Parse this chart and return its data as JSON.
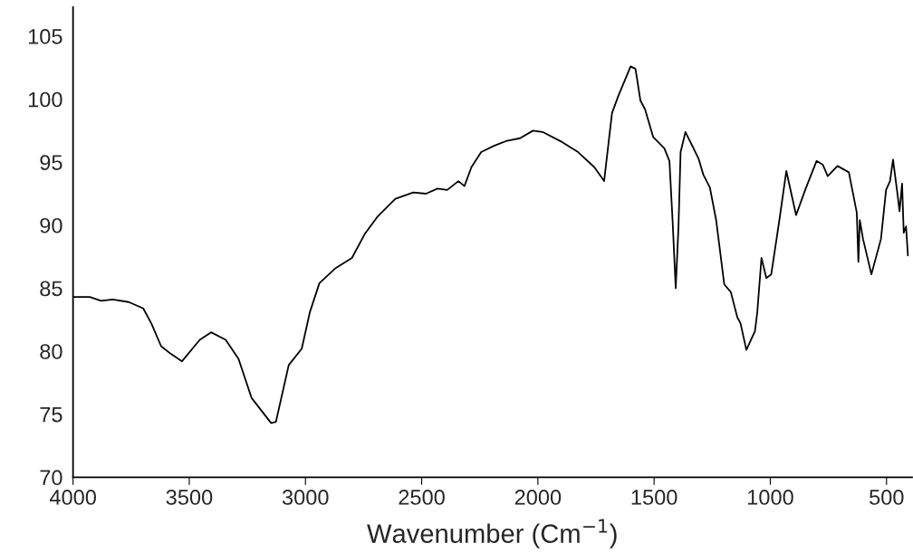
{
  "chart_data": {
    "type": "line",
    "xlabel": "Wavenumber (Cm$^{−1}$)",
    "xlim": [
      4000,
      390
    ],
    "xticks": [
      4000,
      3500,
      3000,
      2500,
      2000,
      1500,
      1000,
      500
    ],
    "ylim": [
      70,
      107.3
    ],
    "yticks": [
      70,
      75,
      80,
      85,
      90,
      95,
      100,
      105
    ],
    "grid": false,
    "marker": "none",
    "line_style": "solid",
    "series": [
      {
        "color": "#000000",
        "x": [
          4000,
          3928,
          3879,
          3830,
          3760,
          3698,
          3663,
          3621,
          3580,
          3531,
          3455,
          3406,
          3343,
          3288,
          3232,
          3148,
          3127,
          3072,
          3016,
          2981,
          2940,
          2870,
          2800,
          2745,
          2689,
          2613,
          2536,
          2481,
          2432,
          2390,
          2342,
          2316,
          2286,
          2244,
          2189,
          2133,
          2077,
          2021,
          1980,
          1896,
          1827,
          1757,
          1715,
          1681,
          1653,
          1601,
          1580,
          1559,
          1539,
          1504,
          1456,
          1434,
          1420,
          1407,
          1395,
          1386,
          1365,
          1309,
          1288,
          1260,
          1233,
          1198,
          1170,
          1142,
          1128,
          1103,
          1066,
          1056,
          1038,
          1017,
          996,
          961,
          931,
          889,
          850,
          801,
          774,
          753,
          711,
          662,
          628,
          621,
          615,
          601,
          565,
          524,
          502,
          485,
          472,
          453,
          444,
          433,
          426,
          416,
          408
        ],
        "values": [
          84.3,
          84.3,
          84.0,
          84.1,
          83.9,
          83.4,
          82.2,
          80.4,
          79.8,
          79.2,
          80.9,
          81.5,
          80.9,
          79.4,
          76.3,
          74.3,
          74.4,
          78.9,
          80.2,
          83.1,
          85.4,
          86.6,
          87.4,
          89.3,
          90.7,
          92.1,
          92.6,
          92.5,
          92.9,
          92.8,
          93.5,
          93.1,
          94.6,
          95.8,
          96.3,
          96.7,
          96.9,
          97.5,
          97.4,
          96.6,
          95.8,
          94.6,
          93.5,
          98.9,
          100.3,
          102.6,
          102.4,
          99.9,
          99.2,
          97.0,
          96.1,
          95.1,
          90.2,
          85.0,
          89.9,
          95.8,
          97.4,
          95.3,
          94.0,
          93.0,
          90.4,
          85.3,
          84.7,
          82.7,
          82.2,
          80.1,
          81.6,
          83.1,
          87.4,
          85.8,
          86.1,
          90.4,
          94.3,
          90.8,
          92.8,
          95.1,
          94.8,
          93.9,
          94.7,
          94.2,
          91.0,
          87.1,
          90.4,
          88.9,
          86.1,
          88.9,
          92.8,
          93.5,
          95.2,
          92.5,
          91.1,
          93.3,
          89.4,
          89.9,
          87.6
        ]
      }
    ]
  }
}
